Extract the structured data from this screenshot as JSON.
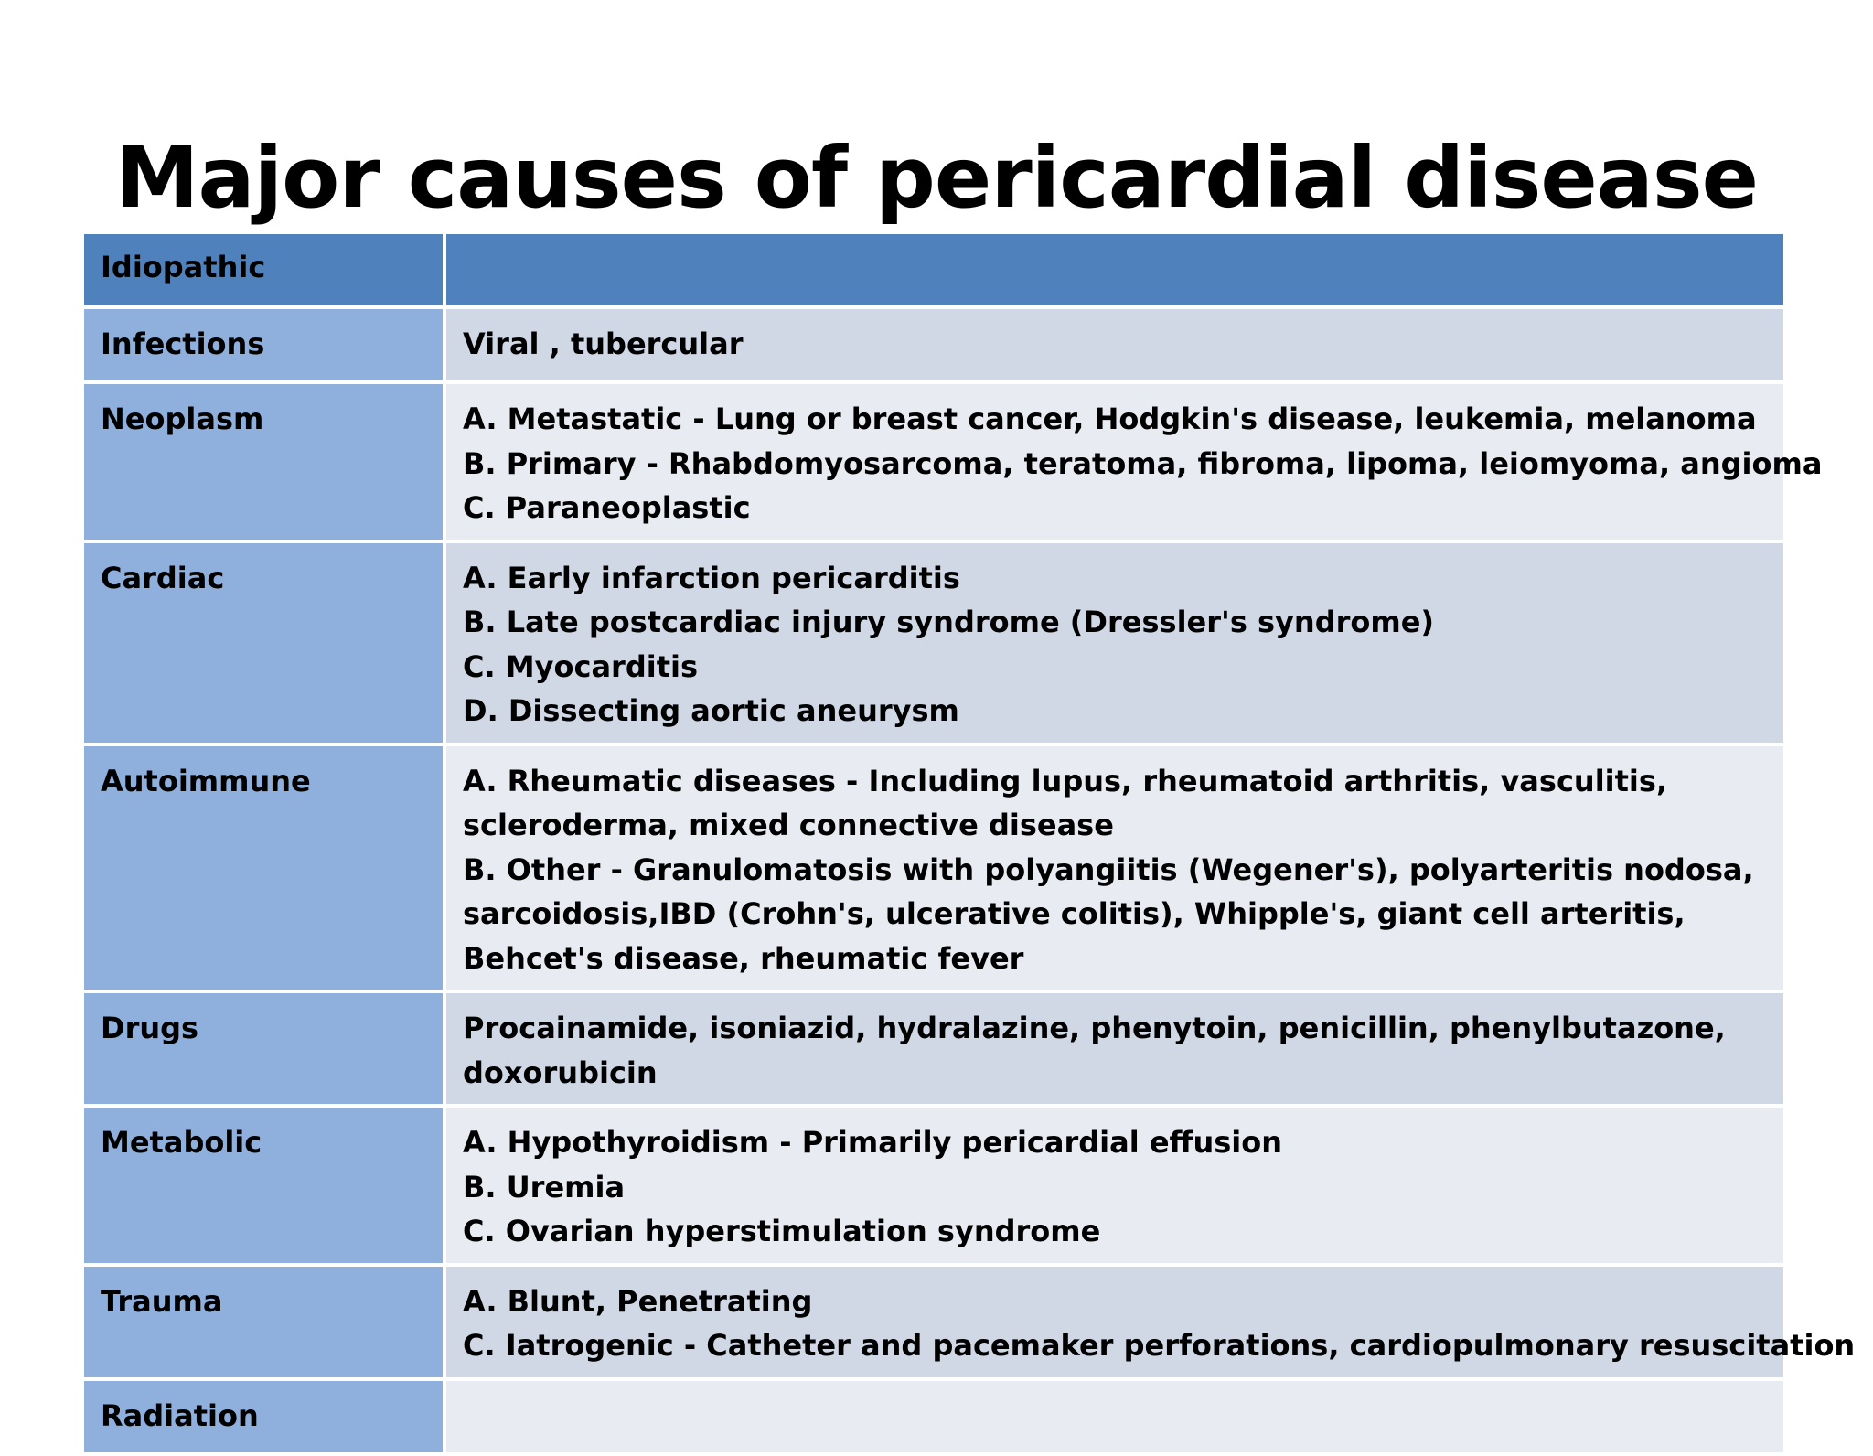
{
  "title": "Major causes of pericardial disease",
  "rows": [
    {
      "label": "Idiopathic",
      "lines": []
    },
    {
      "label": "Infections",
      "lines": [
        "Viral , tubercular"
      ]
    },
    {
      "label": "Neoplasm",
      "lines": [
        "A. Metastatic - Lung or breast cancer, Hodgkin's disease, leukemia, melanoma",
        "B. Primary - Rhabdomyosarcoma, teratoma, fibroma, lipoma, leiomyoma, angioma",
        "C. Paraneoplastic"
      ]
    },
    {
      "label": "Cardiac",
      "lines": [
        "A. Early infarction pericarditis",
        "B. Late postcardiac injury syndrome (Dressler's syndrome)",
        "C. Myocarditis",
        "D. Dissecting aortic aneurysm"
      ]
    },
    {
      "label": "Autoimmune",
      "lines": [
        "A. Rheumatic diseases - Including lupus, rheumatoid arthritis, vasculitis, scleroderma, mixed connective disease",
        "B. Other - Granulomatosis with polyangiitis (Wegener's), polyarteritis nodosa, sarcoidosis,IBD (Crohn's, ulcerative colitis), Whipple's, giant cell arteritis, Behcet's disease, rheumatic fever"
      ]
    },
    {
      "label": "Drugs",
      "lines": [
        "Procainamide, isoniazid, hydralazine, phenytoin, penicillin, phenylbutazone, doxorubicin"
      ]
    },
    {
      "label": "Metabolic",
      "lines": [
        "A. Hypothyroidism - Primarily pericardial effusion",
        "B. Uremia",
        "C. Ovarian hyperstimulation syndrome"
      ]
    },
    {
      "label": "Trauma",
      "lines": [
        "A. Blunt, Penetrating",
        "C. Iatrogenic - Catheter and pacemaker perforations, cardiopulmonary resuscitation"
      ]
    },
    {
      "label": "Radiation",
      "lines": []
    }
  ]
}
